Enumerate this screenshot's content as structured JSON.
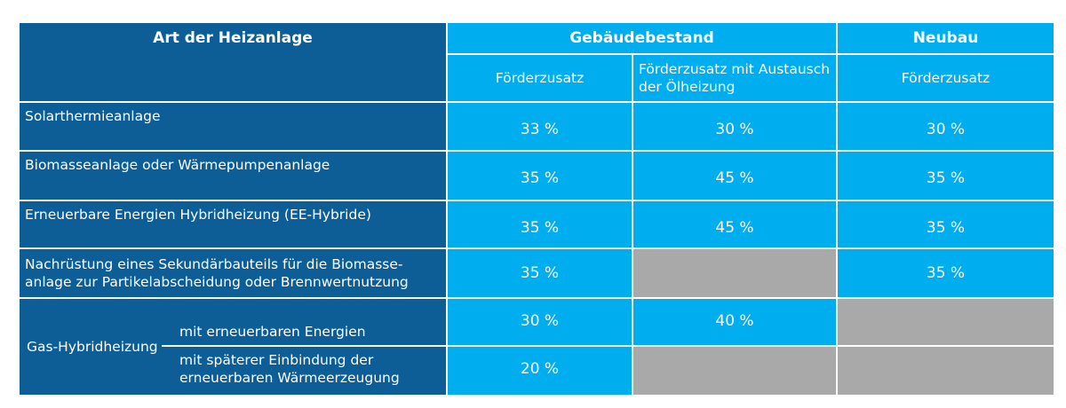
{
  "table": {
    "header": {
      "type_col": "Art der Heizanlage",
      "group_existing": "Gebäudebestand",
      "group_new": "Neubau",
      "sub_existing_1": "Förderzusatz",
      "sub_existing_2": "Förderzusatz mit Austausch der Ölheizung",
      "sub_new": "Förderzusatz"
    },
    "rows": [
      {
        "label": "Solarthermieanlage",
        "v1": "33 %",
        "v2": "30 %",
        "v3": "30 %"
      },
      {
        "label": "Biomasseanlage oder Wärmepumpenanlage",
        "v1": "35 %",
        "v2": "45 %",
        "v3": "35 %"
      },
      {
        "label": "Erneuerbare Energien Hybridheizung (EE-Hybride)",
        "v1": "35 %",
        "v2": "45 %",
        "v3": "35 %"
      },
      {
        "label": "Nachrüstung eines Sekundärbauteils für die Biomasse-anlage zur Partikelabscheidung oder Brennwertnutzung",
        "v1": "35 %",
        "v3": "35 %"
      }
    ],
    "gas": {
      "label": "Gas-Hybridheizung",
      "option1": "mit erneuerbaren Energien",
      "option1_v1": "30 %",
      "option1_v2": "40 %",
      "option2": "mit späterer Einbindung der erneuerbaren Wärmeerzeugung",
      "option2_v1": "20 %"
    },
    "colors": {
      "dark_blue": "#0d5d97",
      "light_blue": "#00adef",
      "gray": "#a9a9a9"
    }
  }
}
